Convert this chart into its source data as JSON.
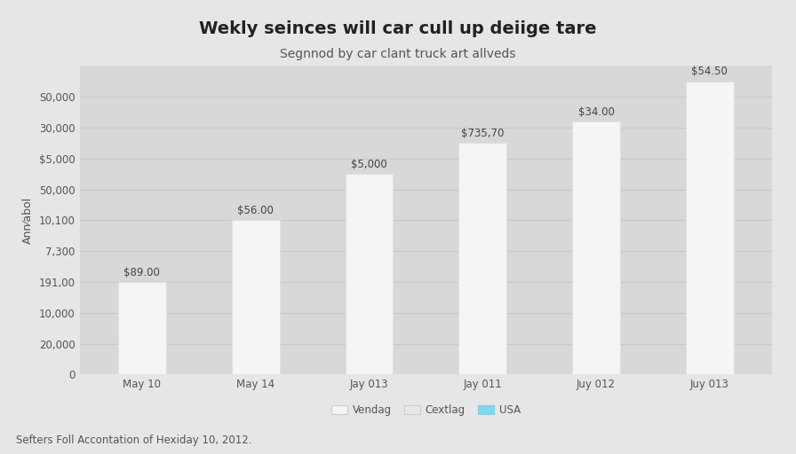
{
  "title": "Wekly seinces will car cull up deiige tare",
  "subtitle": "Segnnod by car clant truck art allveds",
  "ylabel": "Ann⁄abol",
  "footnote": "Sefters Foll Accontation of Hexiday 10, 2012.",
  "categories": [
    "May 10",
    "May 14",
    "Jay 013",
    "Jay 011",
    "Juy 012",
    "Juy 013"
  ],
  "bar_values": [
    3,
    5,
    6.5,
    7.5,
    8.2,
    9.5
  ],
  "bar_labels": [
    "$89.00",
    "$56.00",
    "$5,000",
    "$735,70",
    "$34.00",
    "$54.50"
  ],
  "bar_color": "#f5f5f5",
  "bar_edgecolor": "#dddddd",
  "background_color": "#e6e6e6",
  "plot_bg_color": "#d8d8d8",
  "ytick_labels": [
    "S0,000",
    "30,000",
    "$5,000",
    "50,000",
    "10,100",
    "7,300",
    "191,00",
    "10,000",
    "20,000",
    "0"
  ],
  "ytick_positions": [
    9,
    8,
    7,
    6,
    5,
    4,
    3,
    2,
    1,
    0
  ],
  "ylim_max": 10,
  "legend_labels": [
    "Vendag",
    "Cextlag",
    "USA"
  ],
  "legend_colors": [
    "#f5f5f5",
    "#e8e8e8",
    "#7dd8f0"
  ],
  "legend_edge_colors": [
    "#cccccc",
    "#cccccc",
    "#88ccdd"
  ],
  "title_fontsize": 14,
  "subtitle_fontsize": 10,
  "bar_label_fontsize": 8.5,
  "tick_fontsize": 8.5,
  "ylabel_fontsize": 9,
  "footnote_fontsize": 8.5,
  "grid_color": "#c8c8c8"
}
